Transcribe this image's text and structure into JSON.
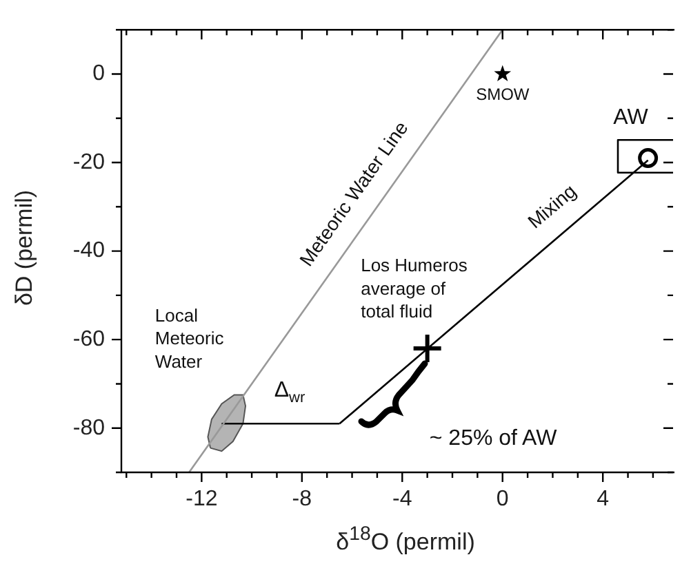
{
  "chart_data": {
    "type": "line",
    "xlabel": "δ$^{18}$O (permil)",
    "ylabel": "δD (permil)",
    "xlim": [
      -15.2,
      6.8
    ],
    "ylim": [
      -90,
      10
    ],
    "xticks": [
      {
        "value": -15,
        "label": null
      },
      {
        "value": -14,
        "label": null
      },
      {
        "value": -13,
        "label": null
      },
      -12,
      {
        "value": -11,
        "label": null
      },
      {
        "value": -10,
        "label": null
      },
      {
        "value": -9,
        "label": null
      },
      -8,
      {
        "value": -7,
        "label": null
      },
      {
        "value": -6,
        "label": null
      },
      {
        "value": -5,
        "label": null
      },
      -4,
      {
        "value": -3,
        "label": null
      },
      {
        "value": -2,
        "label": null
      },
      {
        "value": -1,
        "label": null
      },
      0,
      {
        "value": 1,
        "label": null
      },
      {
        "value": 2,
        "label": null
      },
      {
        "value": 3,
        "label": null
      },
      4,
      {
        "value": 5,
        "label": null
      },
      {
        "value": 6,
        "label": null
      }
    ],
    "yticks": [
      {
        "value": -90,
        "label": null
      },
      -80,
      {
        "value": -70,
        "label": null
      },
      -60,
      {
        "value": -50,
        "label": null
      },
      -40,
      {
        "value": -30,
        "label": null
      },
      -20,
      {
        "value": -10,
        "label": null
      },
      0,
      {
        "value": 10,
        "label": null
      }
    ],
    "grid": false,
    "legend": false,
    "series": [
      {
        "type": "area",
        "color": "#b4b4b4",
        "x": [
          -11.65,
          -11.75,
          -11.6,
          -11.2,
          -10.7,
          -10.35,
          -10.25,
          -10.35,
          -10.75,
          -11.2,
          -11.65
        ],
        "values": [
          -84.5,
          -82,
          -78,
          -74.5,
          -72.5,
          -72.5,
          -75,
          -79,
          -83,
          -85.2,
          -84.5
        ]
      },
      {
        "color": "#999999",
        "x": [
          -12.5,
          0
        ],
        "values": [
          -90,
          10
        ]
      },
      {
        "color": "#000000",
        "x": [
          -6.5,
          5.8
        ],
        "values": [
          -79,
          -19.5
        ]
      },
      {
        "color": "#000000",
        "x": [
          -11.2,
          -6.5
        ],
        "values": [
          -79,
          -79
        ]
      },
      {
        "color": "#000000",
        "x": [
          6.8,
          4.6,
          4.6,
          6.8
        ],
        "values": [
          -14.9,
          -14.9,
          -22.3,
          -22.3
        ]
      },
      {
        "type": "scatter",
        "marker": "cross",
        "color": "#000000",
        "x": [
          -3
        ],
        "values": [
          -62
        ]
      },
      {
        "type": "scatter",
        "marker": "circle",
        "color": "#000000",
        "x": [
          5.8
        ],
        "values": [
          -19
        ]
      },
      {
        "type": "scatter",
        "marker": "star",
        "color": "#000000",
        "x": [
          0
        ],
        "values": [
          0
        ]
      }
    ],
    "annotations": [
      "SMOW",
      "AW",
      "Meteoric Water Line",
      "Mixing",
      "Los Humeros\naverage of\ntotal fluid",
      "Local\nMeteoric\nWater",
      "Δ$_{wr}$",
      "~ 25% of AW"
    ]
  }
}
